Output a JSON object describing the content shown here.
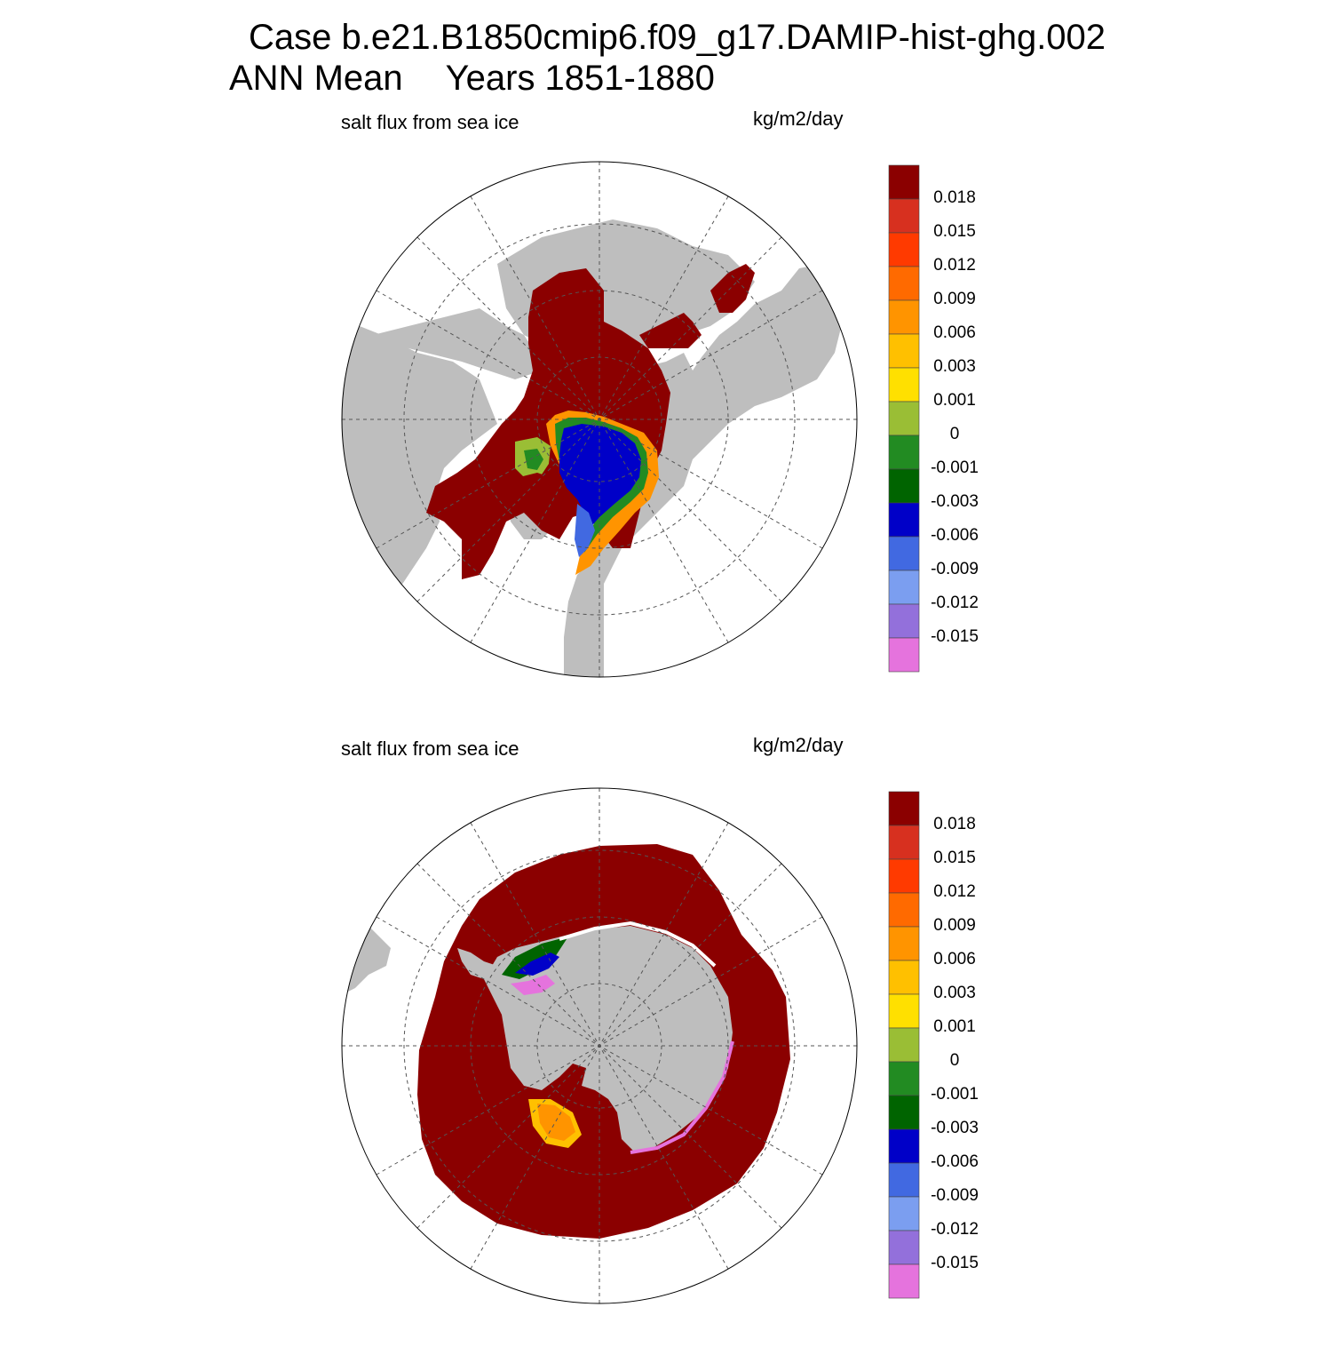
{
  "title": {
    "line1": "Case b.e21.B1850cmip6.f09_g17.DAMIP-hist-ghg.002",
    "season": "ANN Mean",
    "years": "Years 1851-1880"
  },
  "panels": [
    {
      "id": "north",
      "variable": "salt flux from sea ice",
      "units": "kg/m2/day"
    },
    {
      "id": "south",
      "variable": "salt flux from sea ice",
      "units": "kg/m2/day"
    }
  ],
  "colorbar": {
    "labels": [
      "0.018",
      "0.015",
      "0.012",
      "0.009",
      "0.006",
      "0.003",
      "0.001",
      "0",
      "-0.001",
      "-0.003",
      "-0.006",
      "-0.009",
      "-0.012",
      "-0.015"
    ],
    "colors": [
      "#8b0000",
      "#d7301f",
      "#ff3a00",
      "#ff6a00",
      "#ff9400",
      "#ffc000",
      "#ffe000",
      "#9abe35",
      "#228b22",
      "#006400",
      "#0000c8",
      "#4169e1",
      "#7b9ef0",
      "#9370db",
      "#e573dd"
    ]
  },
  "map_colors": {
    "land": "#bebebe",
    "ocean": "#ffffff",
    "grid": "#555555"
  }
}
